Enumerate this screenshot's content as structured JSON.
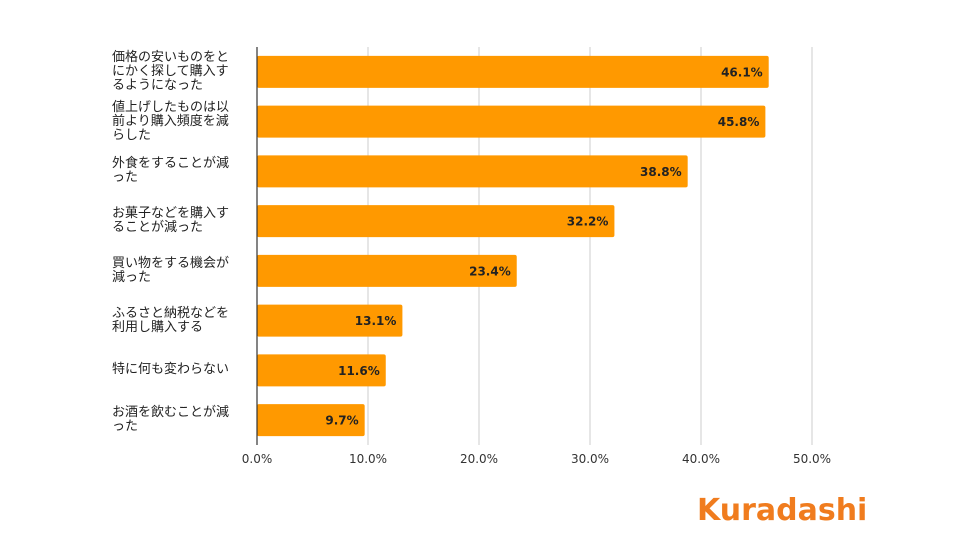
{
  "chart_data": {
    "type": "bar",
    "orientation": "horizontal",
    "categories": [
      "価格の安いものをとにかく探して購入するようになった",
      "値上げしたものは以前より購入頻度を減らした",
      "外食をすることが減った",
      "お菓子などを購入することが減った",
      "買い物をする機会が減った",
      "ふるさと納税などを利用し購入する",
      "特に何も変わらない",
      "お酒を飲むことが減った"
    ],
    "values": [
      46.1,
      45.8,
      38.8,
      32.2,
      23.4,
      13.1,
      11.6,
      9.7
    ],
    "data_labels": [
      "46.1%",
      "45.8%",
      "38.8%",
      "32.2%",
      "23.4%",
      "13.1%",
      "11.6%",
      "9.7%"
    ],
    "xlim": [
      0,
      50
    ],
    "x_ticks": [
      "0.0%",
      "10.0%",
      "20.0%",
      "30.0%",
      "40.0%",
      "50.0%"
    ],
    "grid": "vertical",
    "bar_color": "#FF9900",
    "title": "",
    "xlabel": "",
    "ylabel": ""
  },
  "category_lines": [
    [
      "価格の安いものをと",
      "にかく探して購入す",
      "るようになった"
    ],
    [
      "値上げしたものは以",
      "前より購入頻度を減",
      "らした"
    ],
    [
      "外食をすることが減",
      "った"
    ],
    [
      "お菓子などを購入す",
      "ることが減った"
    ],
    [
      "買い物をする機会が",
      "減った"
    ],
    [
      "ふるさと納税などを",
      "利用し購入する"
    ],
    [
      "特に何も変わらない"
    ],
    [
      "お酒を飲むことが減",
      "った"
    ]
  ],
  "brand": {
    "name": "Kuradashi",
    "color": "#F07C1E"
  }
}
